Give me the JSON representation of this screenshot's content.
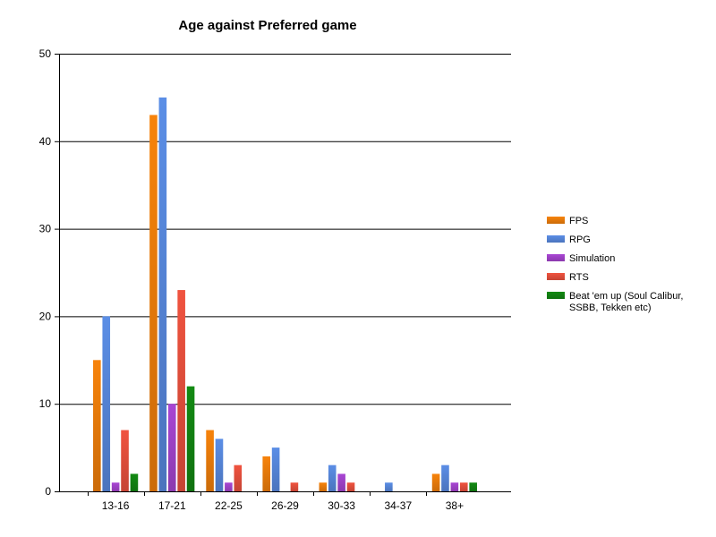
{
  "chart_data": {
    "type": "bar",
    "title": "Age against Preferred game",
    "xlabel": "",
    "ylabel": "",
    "categories": [
      "13-16",
      "17-21",
      "22-25",
      "26-29",
      "30-33",
      "34-37",
      "38+"
    ],
    "series": [
      {
        "name": "FPS",
        "color": "#f7830b",
        "values": [
          15,
          43,
          7,
          4,
          1,
          0,
          2
        ]
      },
      {
        "name": "RPG",
        "color": "#5b8ee6",
        "values": [
          20,
          45,
          6,
          5,
          3,
          1,
          3
        ]
      },
      {
        "name": "Simulation",
        "color": "#a946d4",
        "values": [
          1,
          10,
          1,
          0,
          2,
          0,
          1
        ]
      },
      {
        "name": "RTS",
        "color": "#f0533f",
        "values": [
          7,
          23,
          3,
          1,
          1,
          0,
          1
        ]
      },
      {
        "name": "Beat 'em up (Soul Calibur, SSBB, Tekken etc)",
        "legend_lines": [
          "Beat 'em up (Soul Calibur,",
          "SSBB, Tekken etc)"
        ],
        "color": "#138a13",
        "values": [
          2,
          12,
          0,
          0,
          0,
          0,
          1
        ]
      }
    ],
    "ylim": [
      0,
      50
    ],
    "yticks": [
      0,
      10,
      20,
      30,
      40,
      50
    ],
    "grid": true,
    "legend_position": "right"
  }
}
